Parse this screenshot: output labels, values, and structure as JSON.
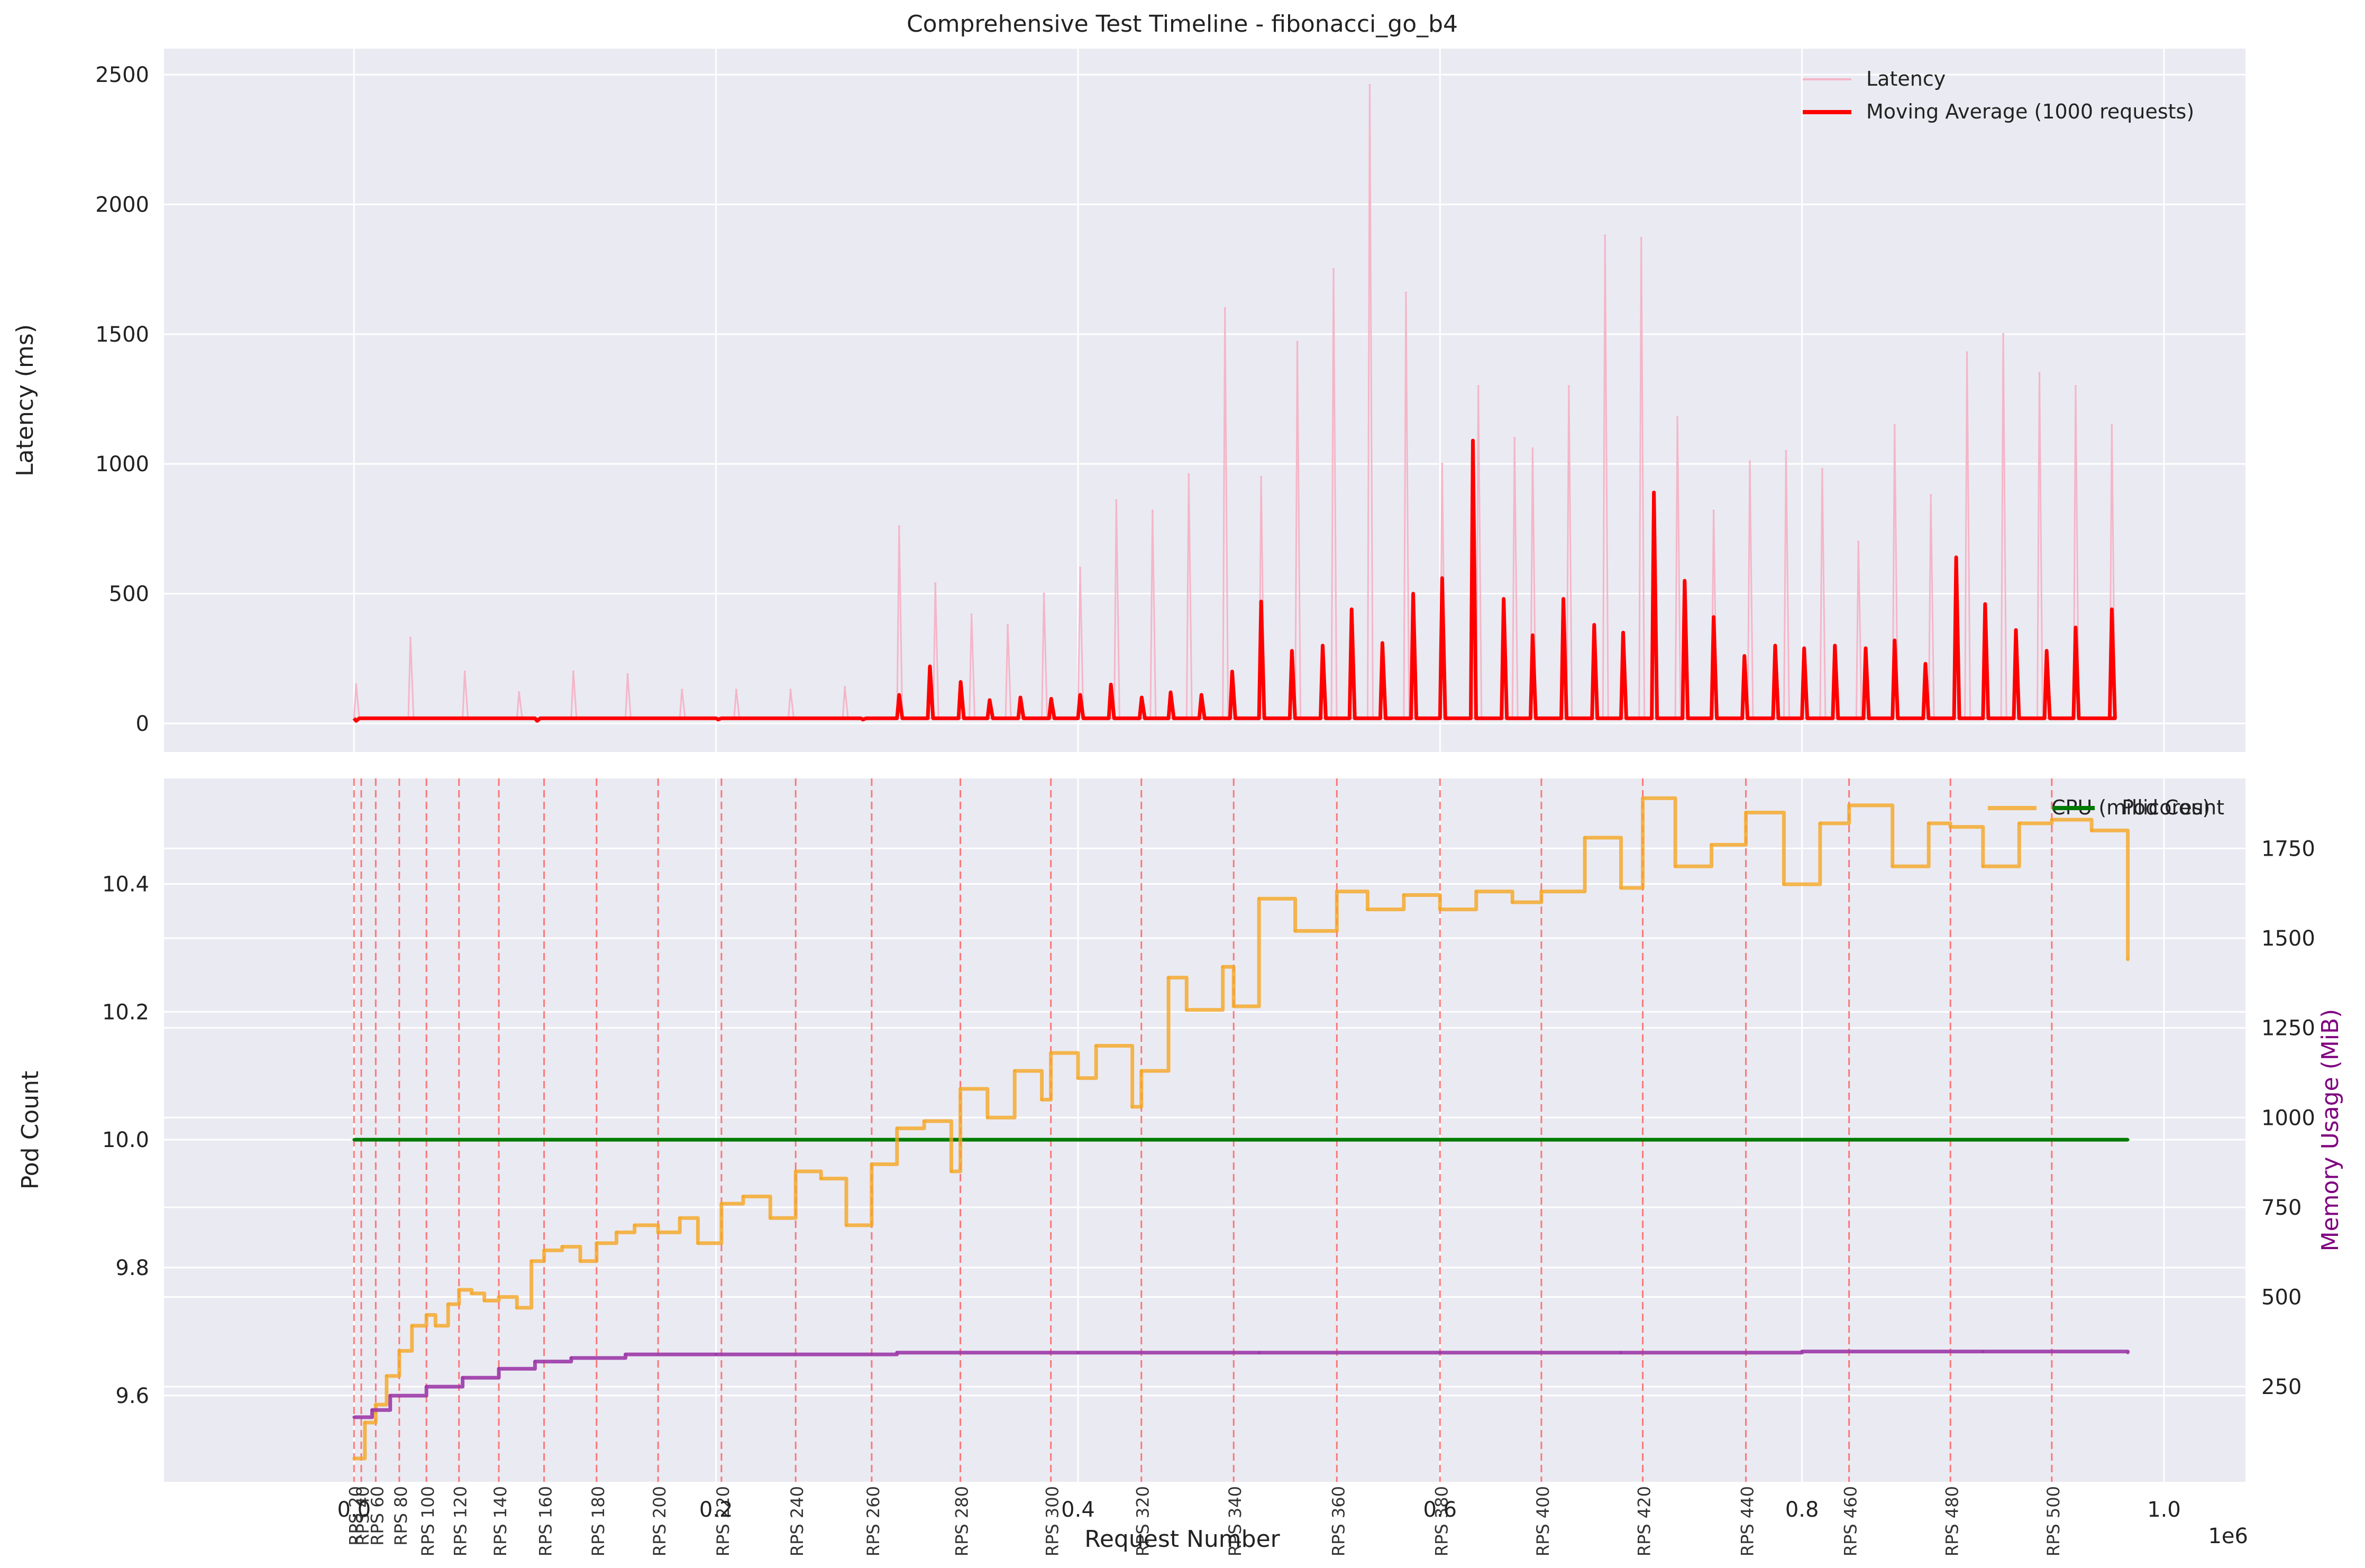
{
  "chart_data": [
    {
      "id": "latency",
      "type": "line",
      "title": "Comprehensive Test Timeline - fibonacci_go_b4",
      "ylabel": "Latency (ms)",
      "xlabel": "",
      "xlim": [
        -105000,
        1045000
      ],
      "ylim": [
        -110,
        2600
      ],
      "yticks": [
        0,
        500,
        1000,
        1500,
        2000,
        2500
      ],
      "grid": true,
      "legend_position": "top-right",
      "legend": [
        "Latency",
        "Moving Average (1000 requests)"
      ],
      "series": [
        {
          "name": "Latency",
          "color": "#f4b6c8",
          "x": [
            0,
            30000,
            60000,
            90000,
            120000,
            150000,
            180000,
            210000,
            240000,
            270000,
            300000,
            320000,
            340000,
            360000,
            380000,
            400000,
            420000,
            440000,
            460000,
            480000,
            500000,
            520000,
            540000,
            560000,
            580000,
            600000,
            620000,
            640000,
            650000,
            670000,
            690000,
            710000,
            730000,
            750000,
            770000,
            790000,
            810000,
            830000,
            850000,
            870000,
            890000,
            910000,
            930000,
            950000,
            970000
          ],
          "y": [
            150,
            330,
            200,
            120,
            200,
            190,
            130,
            130,
            130,
            140,
            760,
            540,
            420,
            380,
            500,
            600,
            860,
            820,
            960,
            1600,
            950,
            1470,
            1750,
            2460,
            1660,
            1000,
            1300,
            1100,
            1060,
            1300,
            1880,
            1870,
            1180,
            820,
            1010,
            1050,
            980,
            700,
            1150,
            880,
            1430,
            1500,
            1350,
            1300,
            1150
          ]
        },
        {
          "name": "Moving Average (1000 requests)",
          "color": "#ff0000",
          "x": [
            0,
            100000,
            200000,
            280000,
            300000,
            317000,
            334000,
            350000,
            367000,
            384000,
            400000,
            417000,
            434000,
            450000,
            467000,
            484000,
            500000,
            517000,
            534000,
            550000,
            567000,
            584000,
            600000,
            617000,
            634000,
            650000,
            667000,
            684000,
            700000,
            717000,
            734000,
            750000,
            767000,
            784000,
            800000,
            817000,
            834000,
            850000,
            867000,
            884000,
            900000,
            917000,
            934000,
            950000,
            970000
          ],
          "y": [
            10,
            10,
            15,
            15,
            110,
            220,
            160,
            90,
            100,
            95,
            110,
            150,
            100,
            120,
            110,
            200,
            470,
            280,
            300,
            440,
            310,
            500,
            560,
            1090,
            480,
            340,
            480,
            380,
            350,
            890,
            550,
            410,
            260,
            300,
            290,
            300,
            290,
            320,
            230,
            640,
            460,
            360,
            280,
            370,
            440
          ]
        }
      ]
    },
    {
      "id": "resources",
      "type": "line",
      "xlabel": "Request Number",
      "ylabel": "Pod Count",
      "y2label": "Memory Usage (MiB)",
      "x_multiplier": "1e6",
      "xlim": [
        -0.105,
        1.045
      ],
      "xticks": [
        0.0,
        0.2,
        0.4,
        0.6,
        0.8,
        1.0
      ],
      "ylim": [
        9.465,
        10.565
      ],
      "yticks": [
        9.6,
        9.8,
        10.0,
        10.2,
        10.4
      ],
      "y2lim": [
        -15,
        1945
      ],
      "y2ticks": [
        250,
        500,
        750,
        1000,
        1250,
        1500,
        1750
      ],
      "grid": true,
      "legend_position": "top-right",
      "legend": [
        "CPU (millicores)",
        "Pod Count"
      ],
      "rps_markers": {
        "color": "#ff5a5a",
        "labels": [
          "RPS 20",
          "RPS 40",
          "RPS 60",
          "RPS 80",
          "RPS 100",
          "RPS 120",
          "RPS 140",
          "RPS 160",
          "RPS 180",
          "RPS 200",
          "RPS 220",
          "RPS 240",
          "RPS 260",
          "RPS 280",
          "RPS 300",
          "RPS 320",
          "RPS 340",
          "RPS 360",
          "RPS 380",
          "RPS 400",
          "RPS 420",
          "RPS 440",
          "RPS 460",
          "RPS 480",
          "RPS 500"
        ],
        "x": [
          0.0,
          0.004,
          0.012,
          0.025,
          0.04,
          0.058,
          0.08,
          0.105,
          0.134,
          0.168,
          0.203,
          0.244,
          0.286,
          0.335,
          0.385,
          0.435,
          0.486,
          0.543,
          0.6,
          0.656,
          0.712,
          0.769,
          0.826,
          0.882,
          0.938
        ]
      },
      "series": [
        {
          "name": "Pod Count",
          "axis": "left",
          "color": "#007a00",
          "x": [
            0.0,
            0.98
          ],
          "y": [
            10.0,
            10.0
          ]
        },
        {
          "name": "CPU (millicores)",
          "axis": "right",
          "color": "#f5a623",
          "x": [
            0.0,
            0.006,
            0.012,
            0.018,
            0.025,
            0.032,
            0.04,
            0.045,
            0.052,
            0.058,
            0.065,
            0.072,
            0.08,
            0.09,
            0.098,
            0.105,
            0.115,
            0.125,
            0.134,
            0.145,
            0.155,
            0.168,
            0.18,
            0.19,
            0.203,
            0.215,
            0.23,
            0.244,
            0.258,
            0.272,
            0.286,
            0.3,
            0.315,
            0.33,
            0.335,
            0.35,
            0.365,
            0.38,
            0.385,
            0.4,
            0.41,
            0.43,
            0.435,
            0.45,
            0.46,
            0.48,
            0.486,
            0.5,
            0.52,
            0.543,
            0.56,
            0.58,
            0.6,
            0.62,
            0.64,
            0.656,
            0.68,
            0.7,
            0.712,
            0.73,
            0.75,
            0.769,
            0.79,
            0.81,
            0.826,
            0.85,
            0.87,
            0.882,
            0.9,
            0.92,
            0.938,
            0.96,
            0.98
          ],
          "y": [
            50,
            150,
            200,
            280,
            350,
            420,
            450,
            420,
            480,
            520,
            510,
            490,
            500,
            470,
            600,
            630,
            640,
            600,
            650,
            680,
            700,
            680,
            720,
            650,
            760,
            780,
            720,
            850,
            830,
            700,
            870,
            970,
            990,
            850,
            1080,
            1000,
            1130,
            1050,
            1180,
            1110,
            1200,
            1030,
            1130,
            1390,
            1300,
            1420,
            1310,
            1610,
            1520,
            1630,
            1580,
            1620,
            1580,
            1630,
            1600,
            1630,
            1780,
            1640,
            1890,
            1700,
            1760,
            1850,
            1650,
            1820,
            1870,
            1700,
            1820,
            1810,
            1700,
            1820,
            1830,
            1800,
            1440
          ]
        },
        {
          "name": "Memory Usage (MiB)",
          "axis": "right",
          "color": "#9c3aa8",
          "x": [
            0.0,
            0.01,
            0.02,
            0.04,
            0.06,
            0.08,
            0.1,
            0.12,
            0.15,
            0.2,
            0.3,
            0.4,
            0.5,
            0.6,
            0.7,
            0.8,
            0.9,
            0.98
          ],
          "y": [
            165,
            185,
            225,
            250,
            275,
            300,
            320,
            330,
            340,
            340,
            345,
            345,
            345,
            345,
            345,
            348,
            348,
            345
          ]
        }
      ]
    }
  ]
}
